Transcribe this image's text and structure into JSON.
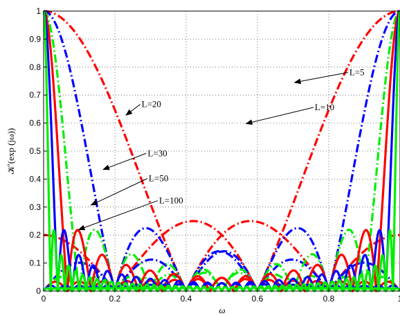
{
  "chart_data": {
    "type": "line",
    "title": "",
    "xlabel": "ω",
    "ylabel": "𝒦′(exp (jω))",
    "xlim": [
      0,
      1
    ],
    "ylim": [
      0,
      1
    ],
    "x_ticks": [
      "0",
      "0.2",
      "0.4",
      "0.6",
      "0.8",
      "1"
    ],
    "y_ticks": [
      "0",
      "0.1",
      "0.2",
      "0.3",
      "0.4",
      "0.5",
      "0.6",
      "0.7",
      "0.8",
      "0.9",
      "1"
    ],
    "grid": true,
    "legend": "none",
    "series": [
      {
        "L": 5,
        "color": "#ff0000",
        "style": "dash-dot",
        "n_curves": 2
      },
      {
        "L": 10,
        "color": "#0000ff",
        "style": "dash-dot",
        "n_curves": 2
      },
      {
        "L": 20,
        "color": "#00ee00",
        "style": "dash-dot",
        "n_curves": 2
      },
      {
        "L": 30,
        "color": "#ff0000",
        "style": "solid",
        "n_curves": 2
      },
      {
        "L": 50,
        "color": "#0000ff",
        "style": "solid",
        "n_curves": 2
      },
      {
        "L": 100,
        "color": "#00ee00",
        "style": "solid",
        "n_curves": 2
      }
    ],
    "annotations": [
      {
        "text": "L=5",
        "label_at": [
          0.858,
          0.771
        ],
        "arrow_to": [
          0.704,
          0.745
        ]
      },
      {
        "text": "L=10",
        "label_at": [
          0.761,
          0.646
        ],
        "arrow_to": [
          0.568,
          0.598
        ]
      },
      {
        "text": "L=20",
        "label_at": [
          0.275,
          0.657
        ],
        "arrow_to": [
          0.231,
          0.628
        ]
      },
      {
        "text": "L=30",
        "label_at": [
          0.292,
          0.482
        ],
        "arrow_to": [
          0.167,
          0.434
        ]
      },
      {
        "text": "L=50",
        "label_at": [
          0.295,
          0.392
        ],
        "arrow_to": [
          0.133,
          0.307
        ]
      },
      {
        "text": "L=100",
        "label_at": [
          0.324,
          0.313
        ],
        "arrow_to": [
          0.098,
          0.219
        ]
      }
    ]
  }
}
